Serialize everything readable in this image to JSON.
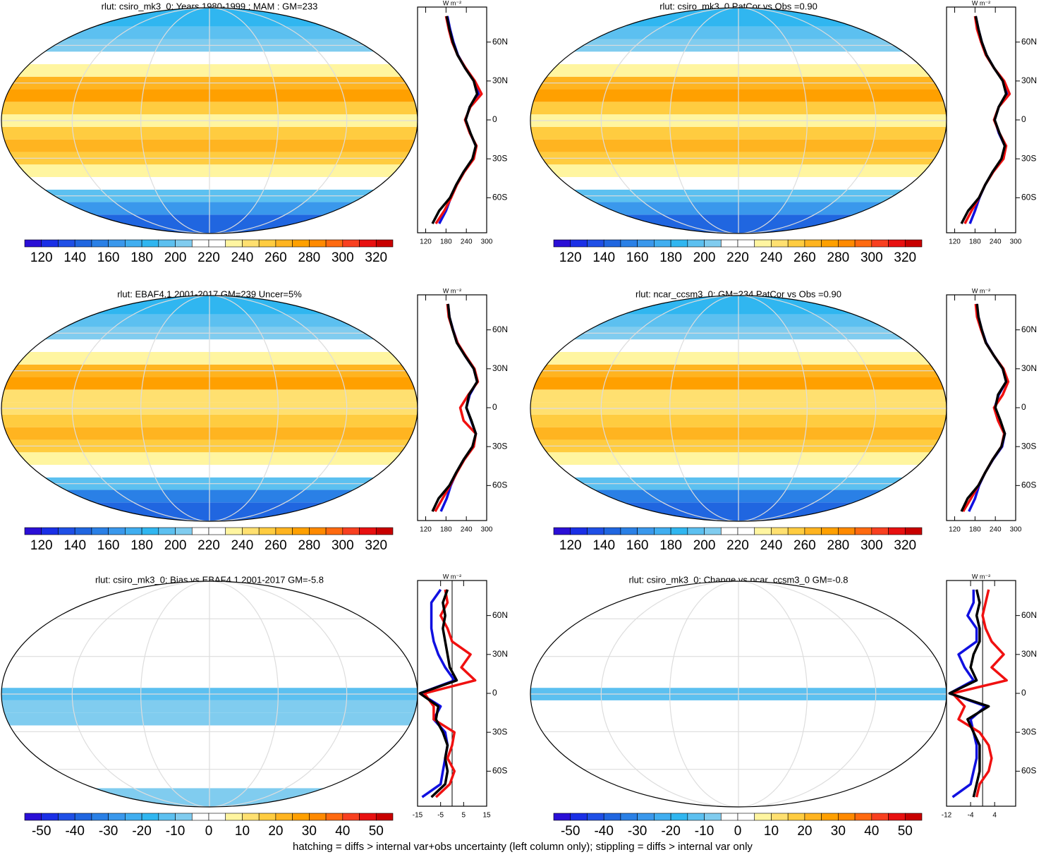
{
  "chart_data": [
    {
      "type": "map",
      "title": "rlut: csiro_mk3_0: Years 1980-1999 : MAM : GM=233",
      "colorbar_ticks": [
        120,
        140,
        160,
        180,
        200,
        220,
        240,
        260,
        280,
        300,
        320
      ],
      "colorbar_colors": [
        "#2a0fd6",
        "#1a2fe6",
        "#1f4fe6",
        "#2066e0",
        "#2a80e6",
        "#3a98ec",
        "#40aef0",
        "#30b6f0",
        "#5cc0f0",
        "#80ccef",
        "#ffffff",
        "#ffffff",
        "#fff5a0",
        "#ffe070",
        "#ffcc40",
        "#ffb420",
        "#ffa000",
        "#ff8a00",
        "#ff6a10",
        "#f84020",
        "#e81010",
        "#c80000"
      ],
      "zonal": {
        "type": "line",
        "units": "W m⁻²",
        "lat": [
          -80,
          -70,
          -60,
          -50,
          -40,
          -30,
          -20,
          -10,
          0,
          10,
          20,
          30,
          40,
          50,
          60,
          70,
          80
        ],
        "ylim": [
          -87,
          87
        ],
        "yticks": [
          {
            "value": -60,
            "label": "60S"
          },
          {
            "value": -30,
            "label": "30S"
          },
          0,
          {
            "value": 30,
            "label": "30N"
          },
          {
            "value": 60,
            "label": "60N"
          }
        ],
        "xlim": [
          96,
          300
        ],
        "xticks": [
          120,
          180,
          240,
          300
        ],
        "series": [
          {
            "color": "#1010e0",
            "values": [
              160,
              180,
              194,
              211,
              233,
              259,
              268,
              251,
              238,
              250,
              276,
              263,
              237,
              215,
              202,
              192,
              184
            ]
          },
          {
            "color": "#f01010",
            "values": [
              150,
              175,
              195,
              212,
              234,
              262,
              270,
              250,
              236,
              252,
              285,
              265,
              238,
              214,
              198,
              188,
              180
            ]
          },
          {
            "color": "#000000",
            "values": [
              140,
              160,
              192,
              210,
              232,
              258,
              268,
              252,
              238,
              250,
              272,
              262,
              236,
              214,
              200,
              190,
              182
            ]
          }
        ]
      }
    },
    {
      "type": "map",
      "title": "rlut: csiro_mk3_0 PatCor vs Obs =0.90",
      "colorbar_ticks": [
        120,
        140,
        160,
        180,
        200,
        220,
        240,
        260,
        280,
        300,
        320
      ],
      "colorbar_colors": [
        "#2a0fd6",
        "#1a2fe6",
        "#1f4fe6",
        "#2066e0",
        "#2a80e6",
        "#3a98ec",
        "#40aef0",
        "#30b6f0",
        "#5cc0f0",
        "#80ccef",
        "#ffffff",
        "#ffffff",
        "#fff5a0",
        "#ffe070",
        "#ffcc40",
        "#ffb420",
        "#ffa000",
        "#ff8a00",
        "#ff6a10",
        "#f84020",
        "#e81010",
        "#c80000"
      ],
      "zonal": {
        "type": "line",
        "units": "W m⁻²",
        "lat": [
          -80,
          -70,
          -60,
          -50,
          -40,
          -30,
          -20,
          -10,
          0,
          10,
          20,
          30,
          40,
          50,
          60,
          70,
          80
        ],
        "ylim": [
          -87,
          87
        ],
        "yticks": [
          {
            "value": -60,
            "label": "60S"
          },
          {
            "value": -30,
            "label": "30S"
          },
          0,
          {
            "value": 30,
            "label": "30N"
          },
          {
            "value": 60,
            "label": "60N"
          }
        ],
        "xlim": [
          96,
          300
        ],
        "xticks": [
          120,
          180,
          240,
          300
        ],
        "series": [
          {
            "color": "#1010e0",
            "values": [
              165,
              180,
              193,
              210,
              233,
              260,
              268,
              250,
              238,
              250,
              274,
              263,
              236,
              214,
              200,
              190,
              182
            ]
          },
          {
            "color": "#f01010",
            "values": [
              150,
              170,
              192,
              210,
              234,
              264,
              272,
              252,
              236,
              250,
              282,
              266,
              236,
              212,
              198,
              186,
              180
            ]
          },
          {
            "color": "#000000",
            "values": [
              140,
              160,
              192,
              210,
              232,
              258,
              268,
              252,
              238,
              250,
              272,
              262,
              236,
              214,
              200,
              190,
              182
            ]
          }
        ]
      }
    },
    {
      "type": "map",
      "title": "rlut: EBAF4.1 2001-2017 GM=239 Uncer=5%",
      "colorbar_ticks": [
        120,
        140,
        160,
        180,
        200,
        220,
        240,
        260,
        280,
        300,
        320
      ],
      "colorbar_colors": [
        "#2a0fd6",
        "#1a2fe6",
        "#1f4fe6",
        "#2066e0",
        "#2a80e6",
        "#3a98ec",
        "#40aef0",
        "#30b6f0",
        "#5cc0f0",
        "#80ccef",
        "#ffffff",
        "#ffffff",
        "#fff5a0",
        "#ffe070",
        "#ffcc40",
        "#ffb420",
        "#ffa000",
        "#ff8a00",
        "#ff6a10",
        "#f84020",
        "#e81010",
        "#c80000"
      ],
      "zonal": {
        "type": "line",
        "units": "W m⁻²",
        "lat": [
          -80,
          -70,
          -60,
          -50,
          -40,
          -30,
          -20,
          -10,
          0,
          10,
          20,
          30,
          40,
          50,
          60,
          70,
          80
        ],
        "ylim": [
          -87,
          87
        ],
        "yticks": [
          {
            "value": -60,
            "label": "60S"
          },
          {
            "value": -30,
            "label": "30S"
          },
          0,
          {
            "value": 30,
            "label": "30N"
          },
          {
            "value": 60,
            "label": "60N"
          }
        ],
        "xlim": [
          96,
          300
        ],
        "xticks": [
          120,
          180,
          240,
          300
        ],
        "series": [
          {
            "color": "#1010e0",
            "values": [
              165,
              182,
              194,
              211,
              233,
              260,
              268,
              254,
              240,
              250,
              272,
              262,
              236,
              214,
              201,
              190,
              186
            ]
          },
          {
            "color": "#f01010",
            "values": [
              148,
              170,
              192,
              212,
              234,
              262,
              268,
              232,
              222,
              246,
              274,
              264,
              238,
              214,
              200,
              188,
              184
            ]
          },
          {
            "color": "#000000",
            "values": [
              140,
              158,
              190,
              210,
              232,
              258,
              268,
              255,
              240,
              248,
              272,
              262,
              236,
              212,
              200,
              190,
              186
            ]
          }
        ]
      }
    },
    {
      "type": "map",
      "title": "rlut: ncar_ccsm3_0: GM=234 PatCor vs Obs =0.90",
      "colorbar_ticks": [
        120,
        140,
        160,
        180,
        200,
        220,
        240,
        260,
        280,
        300,
        320
      ],
      "colorbar_colors": [
        "#2a0fd6",
        "#1a2fe6",
        "#1f4fe6",
        "#2066e0",
        "#2a80e6",
        "#3a98ec",
        "#40aef0",
        "#30b6f0",
        "#5cc0f0",
        "#80ccef",
        "#ffffff",
        "#ffffff",
        "#fff5a0",
        "#ffe070",
        "#ffcc40",
        "#ffb420",
        "#ffa000",
        "#ff8a00",
        "#ff6a10",
        "#f84020",
        "#e81010",
        "#c80000"
      ],
      "zonal": {
        "type": "line",
        "units": "W m⁻²",
        "lat": [
          -80,
          -70,
          -60,
          -50,
          -40,
          -30,
          -20,
          -10,
          0,
          10,
          20,
          30,
          40,
          50,
          60,
          70,
          80
        ],
        "ylim": [
          -87,
          87
        ],
        "yticks": [
          {
            "value": -60,
            "label": "60S"
          },
          {
            "value": -30,
            "label": "30S"
          },
          0,
          {
            "value": 30,
            "label": "30N"
          },
          {
            "value": 60,
            "label": "60N"
          }
        ],
        "xlim": [
          96,
          300
        ],
        "xticks": [
          120,
          180,
          240,
          300
        ],
        "series": [
          {
            "color": "#1010e0",
            "values": [
              162,
              180,
              192,
              210,
              233,
              260,
              268,
              252,
              238,
              250,
              272,
              262,
              236,
              213,
              200,
              190,
              184
            ]
          },
          {
            "color": "#f01010",
            "values": [
              145,
              168,
              190,
              210,
              232,
              258,
              266,
              248,
              236,
              262,
              278,
              264,
              236,
              212,
              198,
              186,
              182
            ]
          },
          {
            "color": "#000000",
            "values": [
              140,
              158,
              190,
              210,
              232,
              258,
              268,
              255,
              240,
              248,
              272,
              262,
              236,
              212,
              200,
              190,
              186
            ]
          }
        ]
      }
    },
    {
      "type": "map",
      "title": "rlut: csiro_mk3_0: Bias vs EBAF4.1 2001-2017 GM=-5.8",
      "colorbar_ticks": [
        -50,
        -40,
        -30,
        -20,
        -10,
        0,
        10,
        20,
        30,
        40,
        50
      ],
      "colorbar_colors": [
        "#2a0fd6",
        "#1a2fe6",
        "#1f4fe6",
        "#2066e0",
        "#2a80e6",
        "#3a98ec",
        "#40aef0",
        "#30b6f0",
        "#5cc0f0",
        "#80ccef",
        "#ffffff",
        "#ffffff",
        "#fff5a0",
        "#ffe070",
        "#ffcc40",
        "#ffb420",
        "#ffa000",
        "#ff8a00",
        "#ff6a10",
        "#f84020",
        "#e81010",
        "#c80000"
      ],
      "zonal": {
        "type": "line",
        "units": "W m⁻²",
        "lat": [
          -80,
          -70,
          -60,
          -50,
          -40,
          -30,
          -20,
          -10,
          0,
          10,
          20,
          30,
          40,
          50,
          60,
          70,
          80
        ],
        "ylim": [
          -87,
          87
        ],
        "yticks": [
          {
            "value": -60,
            "label": "60S"
          },
          {
            "value": -30,
            "label": "30S"
          },
          0,
          {
            "value": 30,
            "label": "30N"
          },
          {
            "value": 60,
            "label": "60N"
          }
        ],
        "xlim": [
          -15,
          15
        ],
        "xticks": [
          -15,
          -5,
          5,
          15
        ],
        "series": [
          {
            "color": "#1010e0",
            "values": [
              -13,
              -5,
              -4,
              -3,
              -2,
              -3,
              -8,
              -5,
              -14,
              1,
              -3,
              -6,
              -8,
              -9,
              -9,
              -9,
              -5
            ]
          },
          {
            "color": "#f01010",
            "values": [
              -7,
              -1,
              1,
              -2,
              0,
              1,
              -8,
              -8,
              -12,
              10,
              4,
              8,
              0,
              -2,
              -5,
              -2,
              -3
            ]
          },
          {
            "color": "#000000",
            "values": [
              -9,
              -3,
              -2,
              -3,
              -2,
              -4,
              -7,
              -6,
              -14,
              2,
              -1,
              -2,
              -3,
              -4,
              -3,
              -4,
              -2
            ]
          }
        ]
      }
    },
    {
      "type": "map",
      "title": "rlut: csiro_mk3_0: Change vs ncar_ccsm3_0 GM=-0.8",
      "colorbar_ticks": [
        -50,
        -40,
        -30,
        -20,
        -10,
        0,
        10,
        20,
        30,
        40,
        50
      ],
      "colorbar_colors": [
        "#2a0fd6",
        "#1a2fe6",
        "#1f4fe6",
        "#2066e0",
        "#2a80e6",
        "#3a98ec",
        "#40aef0",
        "#30b6f0",
        "#5cc0f0",
        "#80ccef",
        "#ffffff",
        "#ffffff",
        "#fff5a0",
        "#ffe070",
        "#ffcc40",
        "#ffb420",
        "#ffa000",
        "#ff8a00",
        "#ff6a10",
        "#f84020",
        "#e81010",
        "#c80000"
      ],
      "zonal": {
        "type": "line",
        "units": "W m⁻²",
        "lat": [
          -80,
          -70,
          -60,
          -50,
          -40,
          -30,
          -20,
          -10,
          0,
          10,
          20,
          30,
          40,
          50,
          60,
          70,
          80
        ],
        "ylim": [
          -87,
          87
        ],
        "yticks": [
          {
            "value": -60,
            "label": "60S"
          },
          {
            "value": -30,
            "label": "30S"
          },
          0,
          {
            "value": 30,
            "label": "30N"
          },
          {
            "value": 60,
            "label": "60N"
          }
        ],
        "xlim": [
          -12,
          11
        ],
        "xticks": [
          -12,
          -4,
          4
        ],
        "series": [
          {
            "color": "#1010e0",
            "values": [
              -10,
              -4,
              -3,
              -2,
              -2,
              -3,
              -4,
              1,
              -11,
              -3,
              -6,
              -8,
              -2,
              -2,
              -5,
              -3,
              -3
            ]
          },
          {
            "color": "#f01010",
            "values": [
              -2,
              -1,
              2,
              3,
              2,
              -1,
              -8,
              -6,
              -10,
              8,
              3,
              7,
              3,
              1,
              0,
              1,
              2
            ]
          },
          {
            "color": "#000000",
            "values": [
              -3,
              -2,
              -1,
              -1,
              -1,
              -3,
              -5,
              2,
              -11,
              -2,
              -4,
              -3,
              -1,
              -1,
              -2,
              -1,
              -2
            ]
          }
        ]
      }
    }
  ],
  "footer": "hatching = diffs > internal var+obs uncertainty (left column only); stippling = diffs > internal var only"
}
